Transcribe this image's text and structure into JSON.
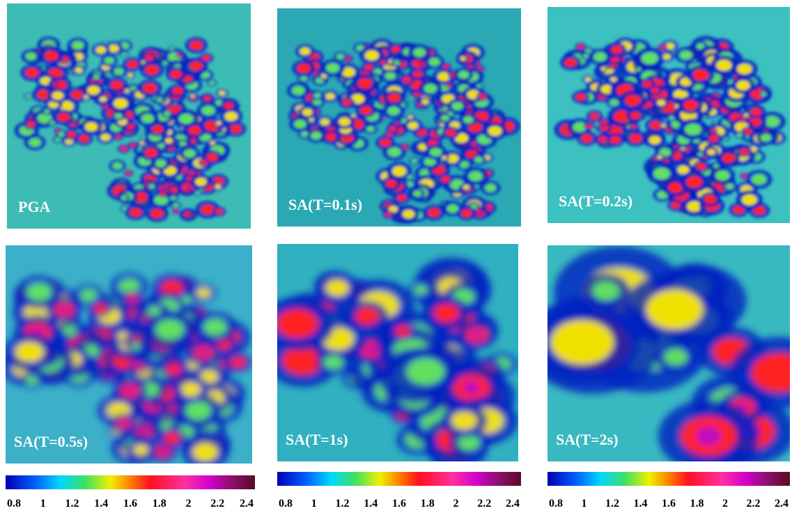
{
  "panels": [
    {
      "label": "PGA"
    },
    {
      "label": "SA(T=0.1s)"
    },
    {
      "label": "SA(T=0.2s)"
    },
    {
      "label": "SA(T=0.5s)"
    },
    {
      "label": "SA(T=1s)"
    },
    {
      "label": "SA(T=2s)"
    }
  ],
  "colorbars": [
    {
      "ticks": [
        0.8,
        1,
        1.2,
        1.4,
        1.6,
        1.8,
        2,
        2.2,
        2.4
      ]
    },
    {
      "ticks": [
        0.8,
        1,
        1.2,
        1.4,
        1.6,
        1.8,
        2,
        2.2,
        2.4
      ]
    },
    {
      "ticks": [
        0.8,
        1,
        1.2,
        1.4,
        1.6,
        1.8,
        2,
        2.2,
        2.4
      ]
    }
  ]
}
